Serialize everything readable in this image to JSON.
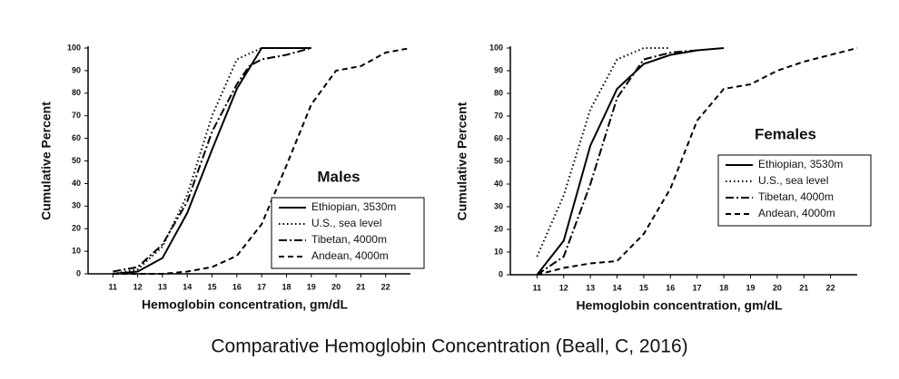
{
  "chart_data": [
    {
      "type": "line",
      "title": "Males",
      "x_label": "Hemoglobin concentration, gm/dL",
      "y_label": "Cumulative Percent",
      "xlim": [
        10,
        23
      ],
      "xticks": [
        11,
        12,
        13,
        14,
        15,
        16,
        17,
        18,
        19,
        20,
        21,
        22
      ],
      "ylim": [
        0,
        100
      ],
      "yticks": [
        0,
        10,
        20,
        30,
        40,
        50,
        60,
        70,
        80,
        90,
        100
      ],
      "grid": false,
      "legend": "lower right",
      "series": [
        {
          "name": "Ethiopian, 3530m",
          "color": "#000000",
          "dash": "solid",
          "x": [
            11,
            12,
            13,
            14,
            15,
            16,
            17,
            19
          ],
          "values": [
            0,
            1,
            7,
            27,
            55,
            82,
            100,
            100
          ]
        },
        {
          "name": "U.S., sea level",
          "color": "#000000",
          "dash": "dotted",
          "x": [
            11,
            12,
            13,
            14,
            15,
            16,
            17,
            18
          ],
          "values": [
            0,
            2,
            12,
            35,
            70,
            95,
            100,
            100
          ]
        },
        {
          "name": "Tibetan, 4000m",
          "color": "#000000",
          "dash": "dashdot",
          "x": [
            11,
            12,
            13,
            14,
            15,
            16,
            16.5,
            17,
            18,
            19
          ],
          "values": [
            1,
            3,
            13,
            32,
            63,
            84,
            92,
            95,
            97,
            100
          ]
        },
        {
          "name": "Andean, 4000m",
          "color": "#000000",
          "dash": "dashed",
          "x": [
            11,
            12,
            13,
            14,
            15,
            16,
            17,
            18,
            19,
            20,
            21,
            22,
            23
          ],
          "values": [
            0,
            0,
            0,
            1,
            3,
            8,
            22,
            48,
            75,
            90,
            92,
            98,
            100
          ]
        }
      ]
    },
    {
      "type": "line",
      "title": "Females",
      "x_label": "Hemoglobin concentration, gm/dL",
      "y_label": "Cumulative Percent",
      "xlim": [
        10,
        23
      ],
      "xticks": [
        11,
        12,
        13,
        14,
        15,
        16,
        17,
        18,
        19,
        20,
        21,
        22
      ],
      "ylim": [
        0,
        100
      ],
      "yticks": [
        0,
        10,
        20,
        30,
        40,
        50,
        60,
        70,
        80,
        90,
        100
      ],
      "grid": false,
      "legend": "center right",
      "series": [
        {
          "name": "Ethiopian, 3530m",
          "color": "#000000",
          "dash": "solid",
          "x": [
            11,
            12,
            13,
            14,
            15,
            16,
            17,
            18
          ],
          "values": [
            0,
            15,
            57,
            82,
            93,
            97,
            99,
            100
          ]
        },
        {
          "name": "U.S., sea level",
          "color": "#000000",
          "dash": "dotted",
          "x": [
            11,
            12,
            13,
            14,
            15,
            16
          ],
          "values": [
            8,
            35,
            73,
            95,
            100,
            100
          ]
        },
        {
          "name": "Tibetan, 4000m",
          "color": "#000000",
          "dash": "dashdot",
          "x": [
            11,
            12,
            13,
            14,
            15,
            16,
            17
          ],
          "values": [
            0,
            8,
            40,
            78,
            95,
            98,
            99
          ]
        },
        {
          "name": "Andean, 4000m",
          "color": "#000000",
          "dash": "dashed",
          "x": [
            11,
            12,
            13,
            14,
            15,
            16,
            17,
            18,
            19,
            20,
            21,
            22,
            23
          ],
          "values": [
            0,
            3,
            5,
            6,
            18,
            38,
            68,
            82,
            84,
            90,
            94,
            97,
            100
          ]
        }
      ]
    }
  ],
  "caption": "Comparative Hemoglobin Concentration (Beall, C, 2016)"
}
